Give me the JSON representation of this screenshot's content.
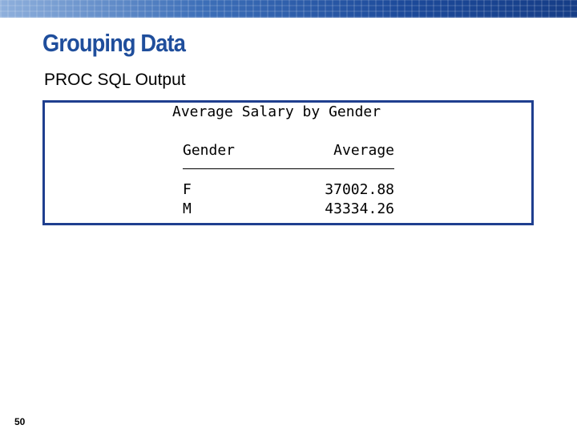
{
  "header": {
    "title": "Grouping Data",
    "subtitle": "PROC SQL Output"
  },
  "output": {
    "title": "Average Salary by Gender",
    "table": {
      "columns": [
        "Gender",
        "Average"
      ],
      "rows": [
        [
          "F",
          "37002.88"
        ],
        [
          "M",
          "43334.26"
        ]
      ]
    }
  },
  "footer": {
    "page_number": "50"
  }
}
